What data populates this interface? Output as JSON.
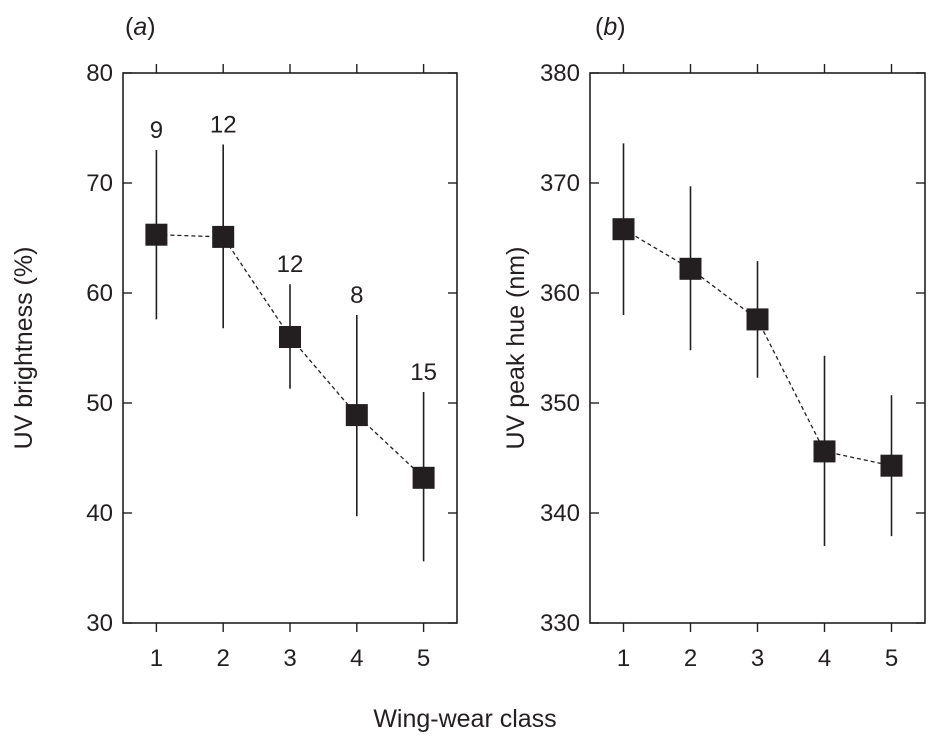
{
  "figure": {
    "xlabel": "Wing-wear class"
  },
  "chart_data": [
    {
      "type": "scatter",
      "panel_label": "(a)",
      "panel_letter": "a",
      "ylabel": "UV brightness (%)",
      "ylim": [
        30,
        80
      ],
      "yticks": [
        30,
        40,
        50,
        60,
        70,
        80
      ],
      "xlim": [
        0.5,
        5.5
      ],
      "xticks": [
        1,
        2,
        3,
        4,
        5
      ],
      "x": [
        1,
        2,
        3,
        4,
        5
      ],
      "y": [
        65.3,
        65.1,
        56.0,
        48.9,
        43.2
      ],
      "error_low": [
        57.6,
        56.8,
        51.3,
        39.7,
        35.6
      ],
      "error_high": [
        73.0,
        73.5,
        60.8,
        58.0,
        51.0
      ],
      "sample_sizes": [
        "9",
        "12",
        "12",
        "8",
        "15"
      ],
      "connector": "dashed",
      "marker": "square",
      "grid": false,
      "color": "#231f20"
    },
    {
      "type": "scatter",
      "panel_label": "(b)",
      "panel_letter": "b",
      "ylabel": "UV peak hue (nm)",
      "ylim": [
        330,
        380
      ],
      "yticks": [
        330,
        340,
        350,
        360,
        370,
        380
      ],
      "xlim": [
        0.5,
        5.5
      ],
      "xticks": [
        1,
        2,
        3,
        4,
        5
      ],
      "x": [
        1,
        2,
        3,
        4,
        5
      ],
      "y": [
        365.8,
        362.2,
        357.6,
        345.6,
        344.3
      ],
      "error_low": [
        358.0,
        354.8,
        352.3,
        337.0,
        337.9
      ],
      "error_high": [
        373.6,
        369.7,
        362.9,
        354.3,
        350.7
      ],
      "connector": "dashed",
      "marker": "square",
      "grid": false,
      "color": "#231f20"
    }
  ]
}
